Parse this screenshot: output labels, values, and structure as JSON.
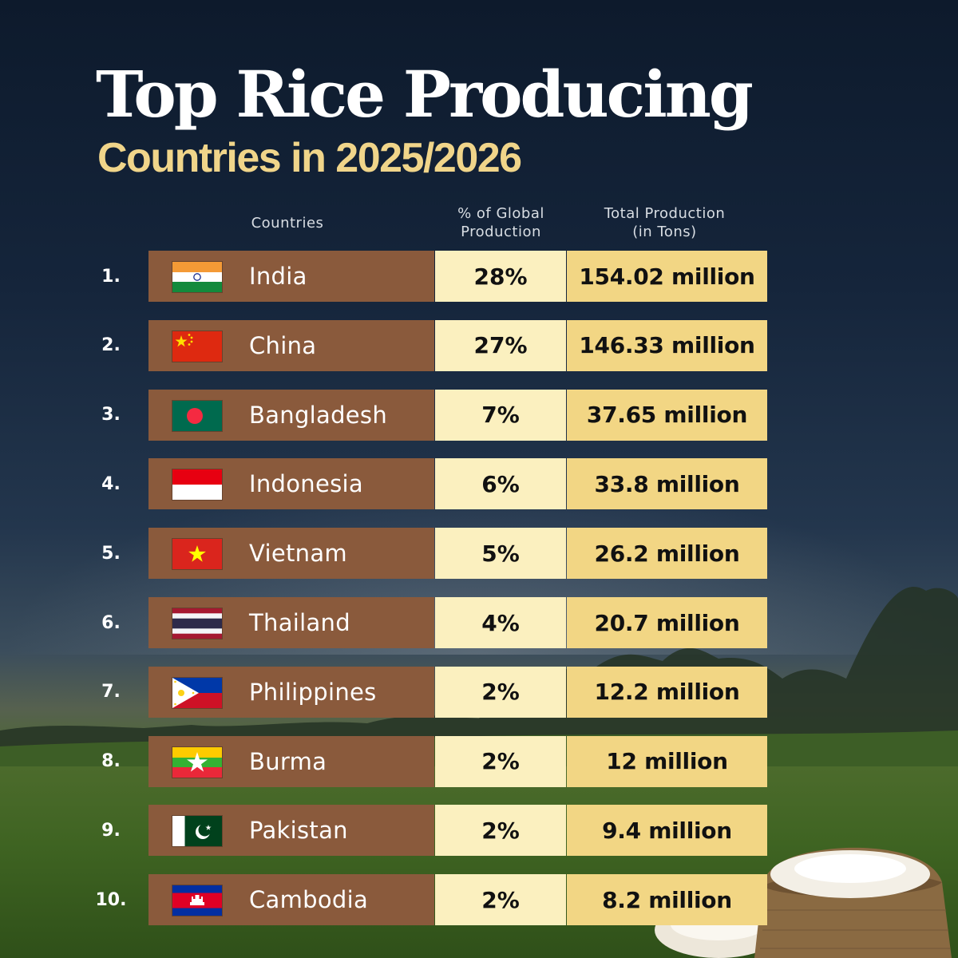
{
  "title": "Top Rice Producing",
  "subtitle": "Countries in 2025/2026",
  "headers": {
    "countries": "Countries",
    "pct_line1": "% of Global",
    "pct_line2": "Production",
    "total_line1": "Total Production",
    "total_line2": "(in Tons)"
  },
  "chart_data": {
    "type": "table",
    "title": "Top Rice Producing",
    "subtitle": "Countries in 2025/2026",
    "columns": [
      "Countries",
      "% of Global Production",
      "Total Production (in Tons)"
    ],
    "rows": [
      {
        "rank": "1.",
        "country": "India",
        "flag": "india-flag-icon",
        "pct": "28%",
        "total": "154.02 million"
      },
      {
        "rank": "2.",
        "country": "China",
        "flag": "china-flag-icon",
        "pct": "27%",
        "total": "146.33 million"
      },
      {
        "rank": "3.",
        "country": "Bangladesh",
        "flag": "bangladesh-flag-icon",
        "pct": "7%",
        "total": "37.65 million"
      },
      {
        "rank": "4.",
        "country": "Indonesia",
        "flag": "indonesia-flag-icon",
        "pct": "6%",
        "total": "33.8 million"
      },
      {
        "rank": "5.",
        "country": "Vietnam",
        "flag": "vietnam-flag-icon",
        "pct": "5%",
        "total": "26.2 million"
      },
      {
        "rank": "6.",
        "country": "Thailand",
        "flag": "thailand-flag-icon",
        "pct": "4%",
        "total": "20.7 million"
      },
      {
        "rank": "7.",
        "country": "Philippines",
        "flag": "philippines-flag-icon",
        "pct": "2%",
        "total": "12.2 million"
      },
      {
        "rank": "8.",
        "country": "Burma",
        "flag": "burma-flag-icon",
        "pct": "2%",
        "total": "12 million"
      },
      {
        "rank": "9.",
        "country": "Pakistan",
        "flag": "pakistan-flag-icon",
        "pct": "2%",
        "total": "9.4 million"
      },
      {
        "rank": "10.",
        "country": "Cambodia",
        "flag": "cambodia-flag-icon",
        "pct": "2%",
        "total": "8.2 million"
      }
    ]
  },
  "colors": {
    "country_cell": "#8a5a3c",
    "pct_cell": "#fbf0bf",
    "total_cell": "#f2d684",
    "subtitle": "#f0d58a",
    "title": "#ffffff"
  }
}
